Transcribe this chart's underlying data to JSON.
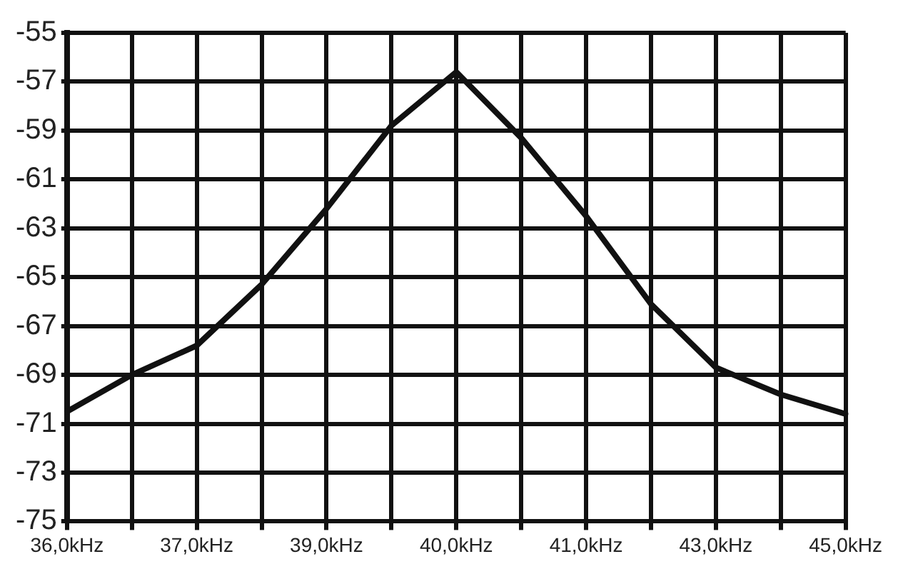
{
  "chart_data": {
    "type": "line",
    "categories": [
      "36,0kHz",
      null,
      "37,0kHz",
      null,
      "39,0kHz",
      null,
      "40,0kHz",
      null,
      "41,0kHz",
      null,
      "43,0kHz",
      null,
      "45,0kHz"
    ],
    "series": [
      {
        "color": "#111111",
        "values": [
          -70.5,
          -69.0,
          -67.8,
          -65.3,
          -62.2,
          -58.8,
          -56.6,
          -59.3,
          -62.5,
          -66.1,
          -68.7,
          -69.8,
          -70.6
        ]
      }
    ],
    "ylim": [
      -75,
      -55
    ],
    "yticks": [
      -75,
      -73,
      -71,
      -69,
      -67,
      -65,
      -63,
      -61,
      -59,
      -57,
      -55
    ],
    "grid": true,
    "legend": false,
    "marker": "none",
    "line_style": "solid"
  }
}
